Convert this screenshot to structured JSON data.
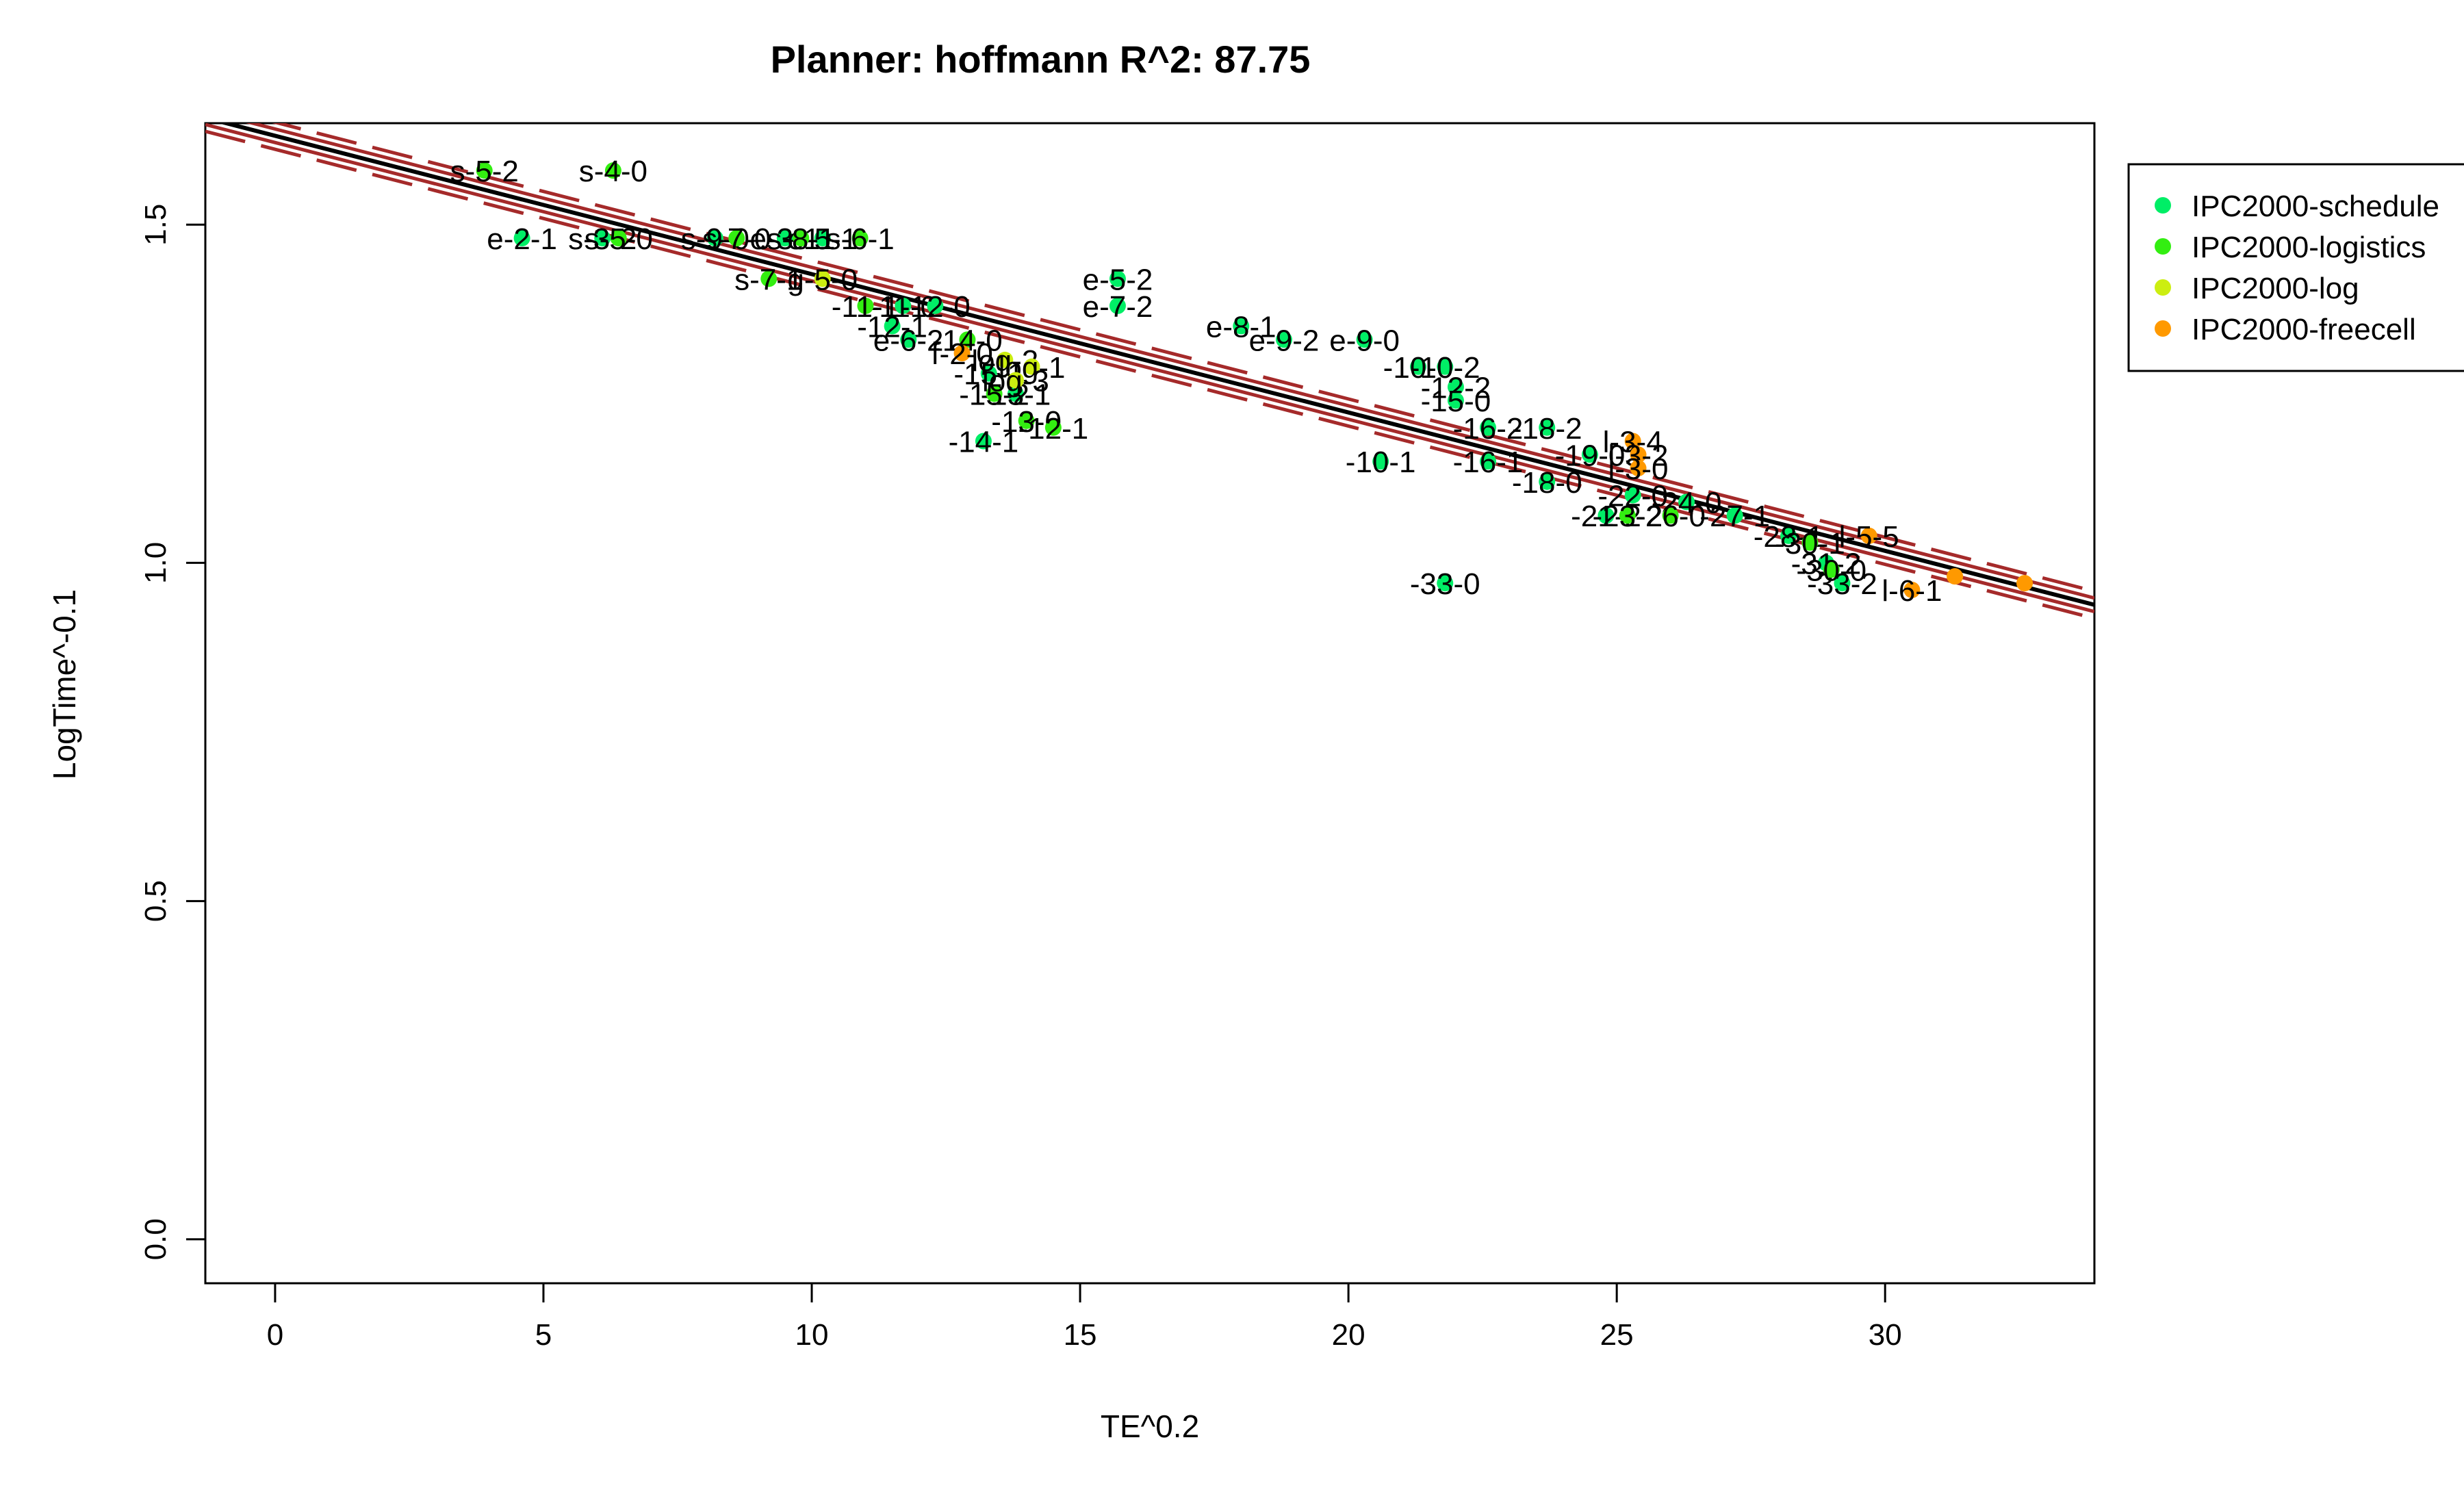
{
  "chart_data": {
    "type": "scatter",
    "title": "Planner: hoffmann R^2: 87.75",
    "xlabel": "TE^0.2",
    "ylabel": "LogTime^-0.1",
    "xlim": [
      -1.3,
      33.9
    ],
    "ylim": [
      -0.065,
      1.65
    ],
    "x_ticks": [
      0,
      5,
      10,
      15,
      20,
      25,
      30
    ],
    "y_ticks": [
      0.0,
      0.5,
      1.0,
      1.5
    ],
    "x_tick_labels": [
      "0",
      "5",
      "10",
      "15",
      "20",
      "25",
      "30"
    ],
    "y_tick_labels": [
      "0.0",
      "0.5",
      "1.0",
      "1.5"
    ],
    "grid": false,
    "legend_position": "right, outside plot, top",
    "series": [
      {
        "name": "IPC2000-schedule",
        "color": "#00ee66",
        "points": [
          {
            "x": 4.6,
            "y": 1.48,
            "label": "e-2-1"
          },
          {
            "x": 6.1,
            "y": 1.48,
            "label": "s-3-2"
          },
          {
            "x": 8.2,
            "y": 1.48,
            "label": "s-9-0"
          },
          {
            "x": 9.5,
            "y": 1.48,
            "label": "e-3-1"
          },
          {
            "x": 10.2,
            "y": 1.48,
            "label": "e-5-1"
          },
          {
            "x": 11.7,
            "y": 1.38,
            "label": "-11-0"
          },
          {
            "x": 12.3,
            "y": 1.38,
            "label": "-12-0"
          },
          {
            "x": 11.5,
            "y": 1.35,
            "label": "-12-1"
          },
          {
            "x": 11.8,
            "y": 1.33,
            "label": "e-6-2"
          },
          {
            "x": 15.7,
            "y": 1.42,
            "label": "e-5-2"
          },
          {
            "x": 15.7,
            "y": 1.38,
            "label": "e-7-2"
          },
          {
            "x": 18.0,
            "y": 1.35,
            "label": "e-8-1"
          },
          {
            "x": 18.8,
            "y": 1.33,
            "label": "e-9-2"
          },
          {
            "x": 20.3,
            "y": 1.33,
            "label": "e-9-0"
          },
          {
            "x": 21.3,
            "y": 1.29,
            "label": "-10-0"
          },
          {
            "x": 21.8,
            "y": 1.29,
            "label": "-10-2"
          },
          {
            "x": 22.0,
            "y": 1.26,
            "label": "-12-2"
          },
          {
            "x": 22.0,
            "y": 1.24,
            "label": "-15-0"
          },
          {
            "x": 13.3,
            "y": 1.28,
            "label": "-15-1"
          },
          {
            "x": 13.8,
            "y": 1.25,
            "label": "-13-1"
          },
          {
            "x": 13.2,
            "y": 1.18,
            "label": "-14-1"
          },
          {
            "x": 20.6,
            "y": 1.15,
            "label": "-10-1"
          },
          {
            "x": 22.6,
            "y": 1.15,
            "label": "-16-1"
          },
          {
            "x": 22.6,
            "y": 1.2,
            "label": "-16-2"
          },
          {
            "x": 23.7,
            "y": 1.2,
            "label": "-18-2"
          },
          {
            "x": 23.7,
            "y": 1.12,
            "label": "-18-0"
          },
          {
            "x": 24.5,
            "y": 1.16,
            "label": "-19-0"
          },
          {
            "x": 24.8,
            "y": 1.07,
            "label": "-21-2"
          },
          {
            "x": 25.3,
            "y": 1.1,
            "label": "-22-0"
          },
          {
            "x": 26.3,
            "y": 1.09,
            "label": "-24-0"
          },
          {
            "x": 27.2,
            "y": 1.07,
            "label": "-27-1"
          },
          {
            "x": 28.2,
            "y": 1.04,
            "label": "-28-1"
          },
          {
            "x": 28.9,
            "y": 1.0,
            "label": "-31-2"
          },
          {
            "x": 29.2,
            "y": 0.97,
            "label": "-33-2"
          },
          {
            "x": 21.8,
            "y": 0.97,
            "label": "-33-0"
          }
        ]
      },
      {
        "name": "IPC2000-logistics",
        "color": "#33ee11",
        "points": [
          {
            "x": 3.9,
            "y": 1.58,
            "label": "s-5-2"
          },
          {
            "x": 6.3,
            "y": 1.58,
            "label": "s-4-0"
          },
          {
            "x": 6.4,
            "y": 1.48,
            "label": "s-5-0"
          },
          {
            "x": 8.6,
            "y": 1.48,
            "label": "s-7-0"
          },
          {
            "x": 9.8,
            "y": 1.48,
            "label": "s-8-1"
          },
          {
            "x": 10.9,
            "y": 1.48,
            "label": "s-6-1"
          },
          {
            "x": 9.2,
            "y": 1.42,
            "label": "s-7-1"
          },
          {
            "x": 11.0,
            "y": 1.38,
            "label": "-11-1"
          },
          {
            "x": 12.9,
            "y": 1.33,
            "label": "-14-0"
          },
          {
            "x": 13.4,
            "y": 1.25,
            "label": "-15-2"
          },
          {
            "x": 14.0,
            "y": 1.21,
            "label": "-13-0"
          },
          {
            "x": 14.5,
            "y": 1.2,
            "label": "-12-1"
          },
          {
            "x": 25.2,
            "y": 1.07,
            "label": "-23-2"
          },
          {
            "x": 26.0,
            "y": 1.07,
            "label": "-26-0"
          },
          {
            "x": 28.6,
            "y": 1.03,
            "label": "-30-1"
          },
          {
            "x": 29.0,
            "y": 0.99,
            "label": "-30-0"
          }
        ]
      },
      {
        "name": "IPC2000-log",
        "color": "#ccee11",
        "points": [
          {
            "x": 10.2,
            "y": 1.42,
            "label": "g-5-0"
          },
          {
            "x": 13.6,
            "y": 1.3,
            "label": "log-2"
          },
          {
            "x": 14.1,
            "y": 1.29,
            "label": "log-1"
          },
          {
            "x": 13.8,
            "y": 1.27,
            "label": "log-3"
          }
        ]
      },
      {
        "name": "IPC2000-freecell",
        "color": "#ff9900",
        "points": [
          {
            "x": 12.8,
            "y": 1.31,
            "label": "f-2-0"
          },
          {
            "x": 25.3,
            "y": 1.18,
            "label": "l-3-4"
          },
          {
            "x": 25.4,
            "y": 1.16,
            "label": "l-3-2"
          },
          {
            "x": 25.4,
            "y": 1.14,
            "label": "l-3-0"
          },
          {
            "x": 29.7,
            "y": 1.04,
            "label": "l-5-5"
          },
          {
            "x": 30.5,
            "y": 0.96,
            "label": "l-6-1"
          },
          {
            "x": 31.3,
            "y": 0.98,
            "label": ""
          },
          {
            "x": 32.6,
            "y": 0.97,
            "label": ""
          }
        ]
      }
    ],
    "lines": [
      {
        "role": "fit",
        "color": "#000000",
        "style": "solid",
        "x": [
          -1.3,
          33.9
        ],
        "y": [
          1.658,
          0.938
        ]
      },
      {
        "role": "confidence-upper",
        "color": "#a52a2a",
        "style": "solid",
        "x": [
          -1.3,
          33.9
        ],
        "y": [
          1.668,
          0.948
        ]
      },
      {
        "role": "confidence-lower",
        "color": "#a52a2a",
        "style": "solid",
        "x": [
          -1.3,
          33.9
        ],
        "y": [
          1.648,
          0.928
        ]
      },
      {
        "role": "prediction-upper",
        "color": "#a52a2a",
        "style": "dashed",
        "x": [
          -1.3,
          33.9
        ],
        "y": [
          1.678,
          0.958
        ]
      },
      {
        "role": "prediction-lower",
        "color": "#a52a2a",
        "style": "dashed",
        "x": [
          -1.3,
          33.9
        ],
        "y": [
          1.638,
          0.918
        ]
      }
    ]
  }
}
